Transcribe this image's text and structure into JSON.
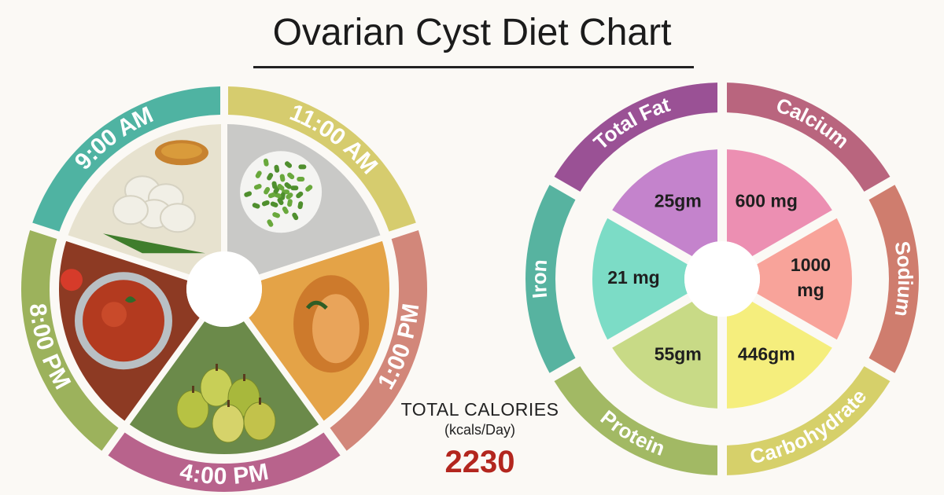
{
  "title": "Ovarian Cyst Diet Chart",
  "calories": {
    "label": "TOTAL CALORIES",
    "unit": "(kcals/Day)",
    "value": "2230"
  },
  "meal_wheel": {
    "times": [
      {
        "label": "9:00 AM",
        "color": "#4fb3a2",
        "food_icon": "idli-sambar-icon"
      },
      {
        "label": "11:00 AM",
        "color": "#d6cc6e",
        "food_icon": "green-beans-icon"
      },
      {
        "label": "1:00 PM",
        "color": "#d2877a",
        "food_icon": "fish-curry-icon"
      },
      {
        "label": "4:00 PM",
        "color": "#b8638c",
        "food_icon": "pears-icon"
      },
      {
        "label": "8:00 PM",
        "color": "#9cb25c",
        "food_icon": "tomato-curry-icon"
      }
    ]
  },
  "chart_data": {
    "type": "pie",
    "title": "Ovarian Cyst Diet Chart",
    "categories": [
      "Total Fat",
      "Calcium",
      "Sodium",
      "Carbohydrate",
      "Protein",
      "Iron"
    ],
    "value_labels": [
      "25gm",
      "600 mg",
      "1000 mg",
      "446gm",
      "55gm",
      "21 mg"
    ],
    "values": [
      25,
      600,
      1000,
      446,
      55,
      21
    ],
    "units": [
      "gm",
      "mg",
      "mg",
      "gm",
      "gm",
      "mg"
    ],
    "total_calories_kcals_per_day": 2230,
    "ring_colors": [
      "#9a5195",
      "#b9657e",
      "#cf7d6e",
      "#d6d06a",
      "#a2b964",
      "#57b3a0"
    ],
    "slice_colors": [
      "#c483cc",
      "#ec8fb2",
      "#f8a39a",
      "#f5ee7d",
      "#c8da86",
      "#7cdcc6"
    ]
  }
}
